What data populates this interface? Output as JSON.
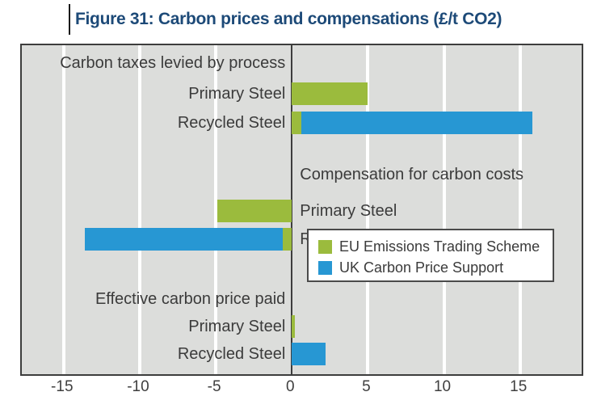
{
  "colors": {
    "eu_ets_green": "#9bbb3d",
    "uk_cps_blue": "#2797d3",
    "plot_background": "#dcdddb",
    "plot_border": "#3d3d3d",
    "gridline_white": "#ffffff",
    "text_gray": "#3b3b3b",
    "title_navy": "#1d4a78"
  },
  "chart_data": {
    "type": "bar",
    "orientation": "horizontal",
    "title": "Figure 31: Carbon prices and compensations (£/t CO2)",
    "xlabel": "",
    "ylabel": "",
    "xlim": [
      -17.75,
      19.05
    ],
    "grid": true,
    "ticks": [
      -15,
      -10,
      -5,
      0,
      5,
      10,
      15
    ],
    "tick_labels": [
      "-15",
      "-10",
      "-5",
      "0",
      "5",
      "10",
      "15"
    ],
    "legend_position": "inside-bottom-right",
    "legend": [
      {
        "key": "EU",
        "label": "EU Emissions Trading Scheme",
        "color": "#9bbb3d"
      },
      {
        "key": "UK",
        "label": "UK Carbon Price Support",
        "color": "#2797d3"
      }
    ],
    "sections": [
      {
        "header": "Carbon taxes levied by process",
        "label_side": "left",
        "rows": [
          {
            "label": "Primary Steel",
            "segments": [
              {
                "series": "EU",
                "from": 0,
                "to": 5.0
              }
            ]
          },
          {
            "label": "Recycled Steel",
            "segments": [
              {
                "series": "EU",
                "from": 0,
                "to": 0.6
              },
              {
                "series": "UK",
                "from": 0.6,
                "to": 15.8
              }
            ]
          }
        ]
      },
      {
        "header": "Compensation for carbon costs",
        "label_side": "right",
        "rows": [
          {
            "label": "Primary Steel",
            "segments": [
              {
                "series": "EU",
                "from": -4.9,
                "to": 0
              }
            ]
          },
          {
            "label": "Recycled Steel",
            "segments": [
              {
                "series": "UK",
                "from": -13.6,
                "to": -0.6
              },
              {
                "series": "EU",
                "from": -0.6,
                "to": 0
              }
            ]
          }
        ]
      },
      {
        "header": "Effective carbon price paid",
        "label_side": "left",
        "rows": [
          {
            "label": "Primary Steel",
            "segments": [
              {
                "series": "EU",
                "from": 0,
                "to": 0.2
              }
            ]
          },
          {
            "label": "Recycled Steel",
            "segments": [
              {
                "series": "UK",
                "from": 0,
                "to": 2.2
              }
            ]
          }
        ]
      }
    ]
  }
}
